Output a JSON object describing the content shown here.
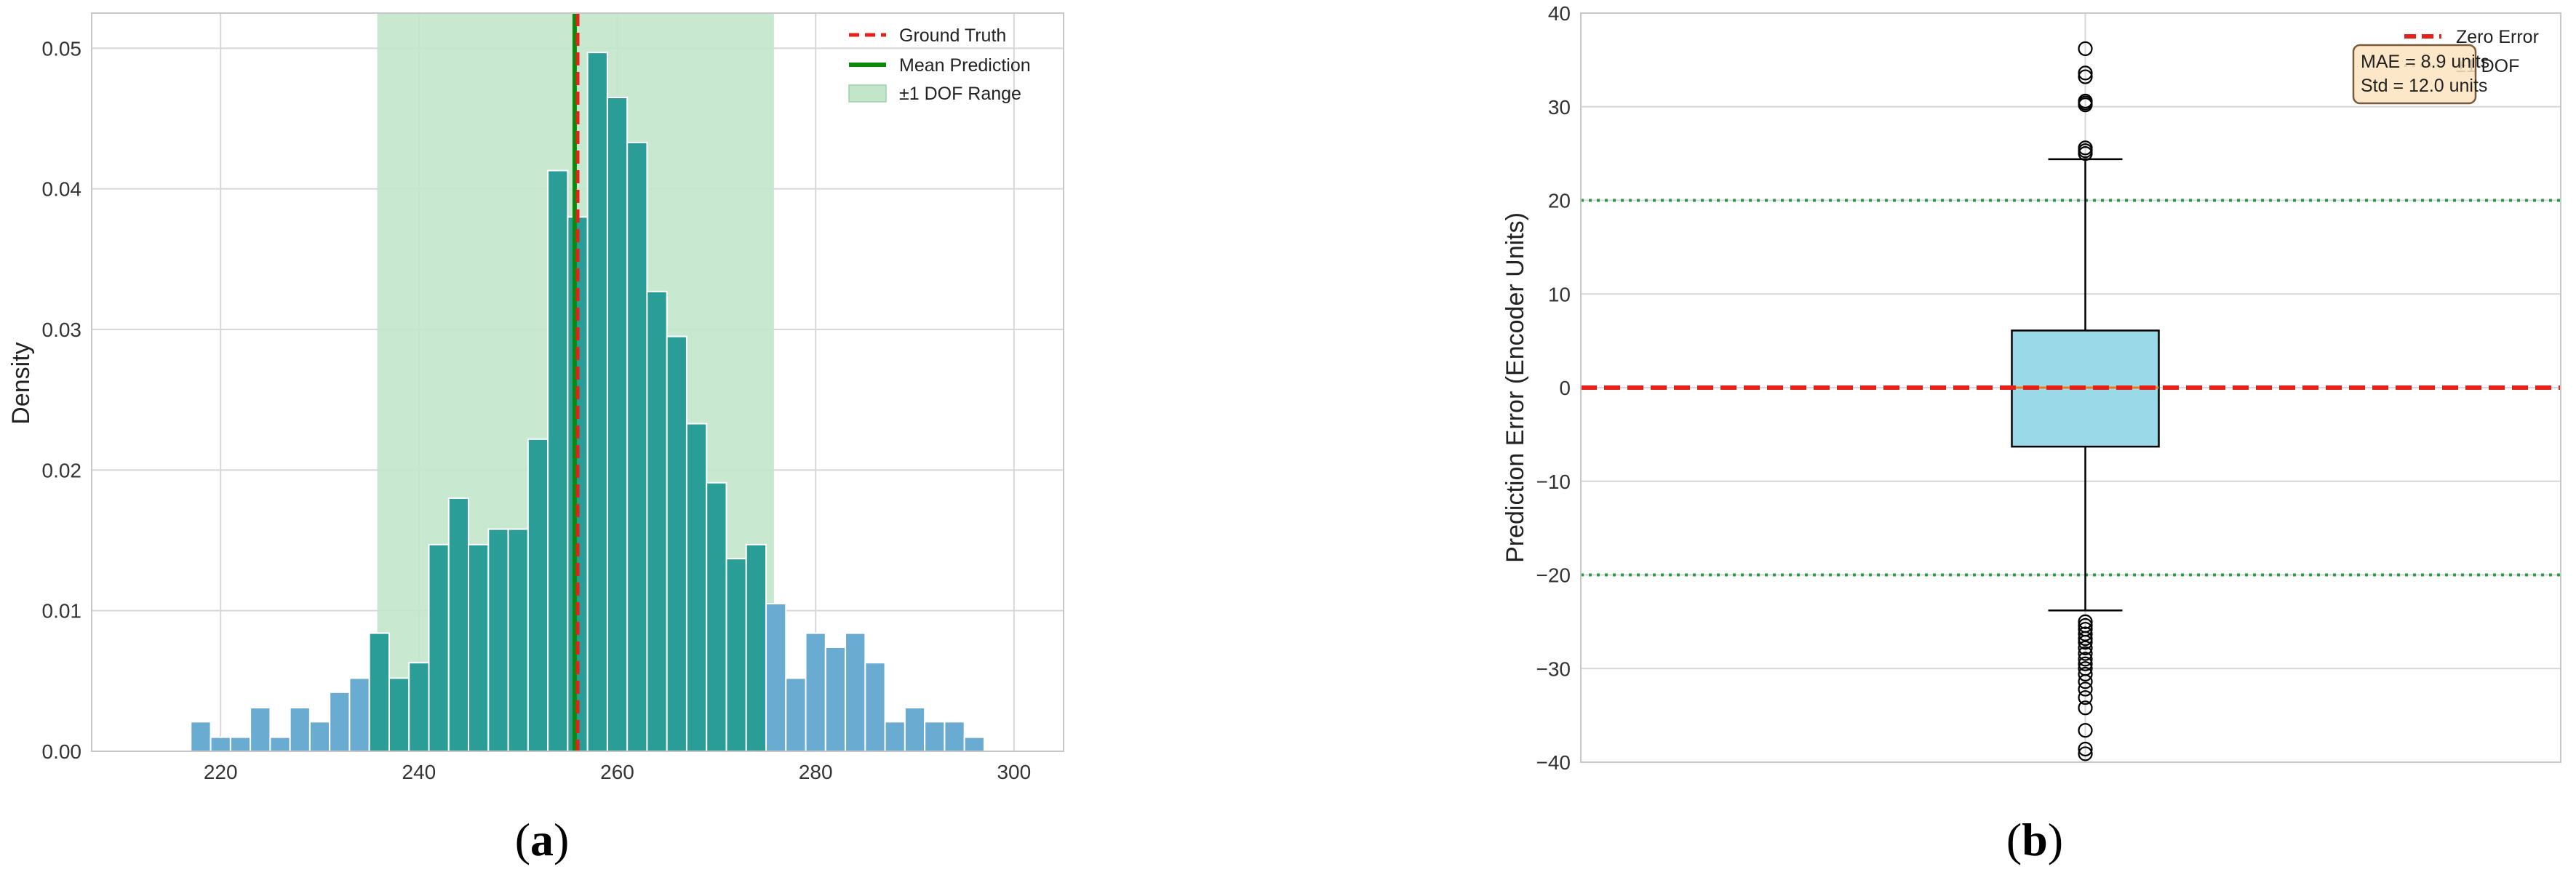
{
  "colors": {
    "grid": "#d7d7d7",
    "hist_outside": "#6aabd2",
    "hist_inside": "#2a9d97",
    "dof_band": "#c3e6cb",
    "ground_truth": "#e8201a",
    "mean_prediction": "#0a8a0a",
    "box_fill": "#99d9e8",
    "dof_line": "#2a9a4a",
    "stats_box_fill": "#fbe3c0",
    "stats_box_edge": "#7a5a3a"
  },
  "chart_data": [
    {
      "type": "bar",
      "panel_label": "(a)",
      "xlabel": "",
      "ylabel": "Density",
      "xlim": [
        207,
        305
      ],
      "ylim": [
        0,
        0.0525
      ],
      "xticks": [
        "220",
        "240",
        "260",
        "280",
        "300"
      ],
      "yticks": [
        "0.00",
        "0.01",
        "0.02",
        "0.03",
        "0.04",
        "0.05"
      ],
      "grid": true,
      "legend_position": "top-right",
      "bin_width": 2.0,
      "bins": [
        {
          "x": 218.0,
          "density": 0.0021
        },
        {
          "x": 220.0,
          "density": 0.001
        },
        {
          "x": 222.0,
          "density": 0.001
        },
        {
          "x": 224.0,
          "density": 0.0031
        },
        {
          "x": 226.0,
          "density": 0.001
        },
        {
          "x": 228.0,
          "density": 0.0031
        },
        {
          "x": 230.0,
          "density": 0.0021
        },
        {
          "x": 232.0,
          "density": 0.0042
        },
        {
          "x": 234.0,
          "density": 0.0052
        },
        {
          "x": 236.0,
          "density": 0.0084
        },
        {
          "x": 238.0,
          "density": 0.0052
        },
        {
          "x": 240.0,
          "density": 0.0063
        },
        {
          "x": 242.0,
          "density": 0.0147
        },
        {
          "x": 244.0,
          "density": 0.018
        },
        {
          "x": 246.0,
          "density": 0.0147
        },
        {
          "x": 248.0,
          "density": 0.0158
        },
        {
          "x": 250.0,
          "density": 0.0158
        },
        {
          "x": 252.0,
          "density": 0.0222
        },
        {
          "x": 254.0,
          "density": 0.0413
        },
        {
          "x": 256.0,
          "density": 0.038
        },
        {
          "x": 258.0,
          "density": 0.0497
        },
        {
          "x": 260.0,
          "density": 0.0465
        },
        {
          "x": 262.0,
          "density": 0.0433
        },
        {
          "x": 264.0,
          "density": 0.0327
        },
        {
          "x": 266.0,
          "density": 0.0295
        },
        {
          "x": 268.0,
          "density": 0.0233
        },
        {
          "x": 270.0,
          "density": 0.0191
        },
        {
          "x": 272.0,
          "density": 0.0137
        },
        {
          "x": 274.0,
          "density": 0.0147
        },
        {
          "x": 276.0,
          "density": 0.0105
        },
        {
          "x": 278.0,
          "density": 0.0052
        },
        {
          "x": 280.0,
          "density": 0.0084
        },
        {
          "x": 282.0,
          "density": 0.0074
        },
        {
          "x": 284.0,
          "density": 0.0084
        },
        {
          "x": 286.0,
          "density": 0.0063
        },
        {
          "x": 288.0,
          "density": 0.0021
        },
        {
          "x": 290.0,
          "density": 0.0031
        },
        {
          "x": 292.0,
          "density": 0.0021
        },
        {
          "x": 294.0,
          "density": 0.0021
        },
        {
          "x": 296.0,
          "density": 0.001
        }
      ],
      "ground_truth": 256.0,
      "mean_prediction": 255.7,
      "dof_range": [
        235.8,
        275.8
      ],
      "legend": [
        "Ground Truth",
        "Mean Prediction",
        "±1 DOF Range"
      ]
    },
    {
      "type": "box",
      "panel_label": "(b)",
      "xlabel": "",
      "ylabel": "Prediction Error (Encoder Units)",
      "ylim": [
        -40,
        40
      ],
      "yticks": [
        "−40",
        "−30",
        "−20",
        "−10",
        "0",
        "10",
        "20",
        "30",
        "40"
      ],
      "grid": true,
      "legend_position": "top-right",
      "box": {
        "q1": -6.3,
        "median": 0.0,
        "q3": 6.1,
        "whisker_low": -23.8,
        "whisker_high": 24.4
      },
      "outliers_high": [
        25.0,
        25.3,
        25.6,
        30.2,
        30.4,
        30.6,
        33.2,
        33.6,
        36.2
      ],
      "outliers_low": [
        -25.0,
        -25.4,
        -25.8,
        -26.3,
        -26.8,
        -27.2,
        -27.8,
        -28.4,
        -29.0,
        -29.5,
        -30.0,
        -30.6,
        -31.4,
        -32.2,
        -33.1,
        -34.2,
        -36.6,
        -38.6,
        -39.1
      ],
      "zero_line": 0,
      "dof_lines": [
        20,
        -20
      ],
      "legend": [
        "Zero Error",
        "±1 DOF"
      ],
      "stats_text": [
        "MAE = 8.9 units",
        "Std = 12.0 units"
      ]
    }
  ]
}
